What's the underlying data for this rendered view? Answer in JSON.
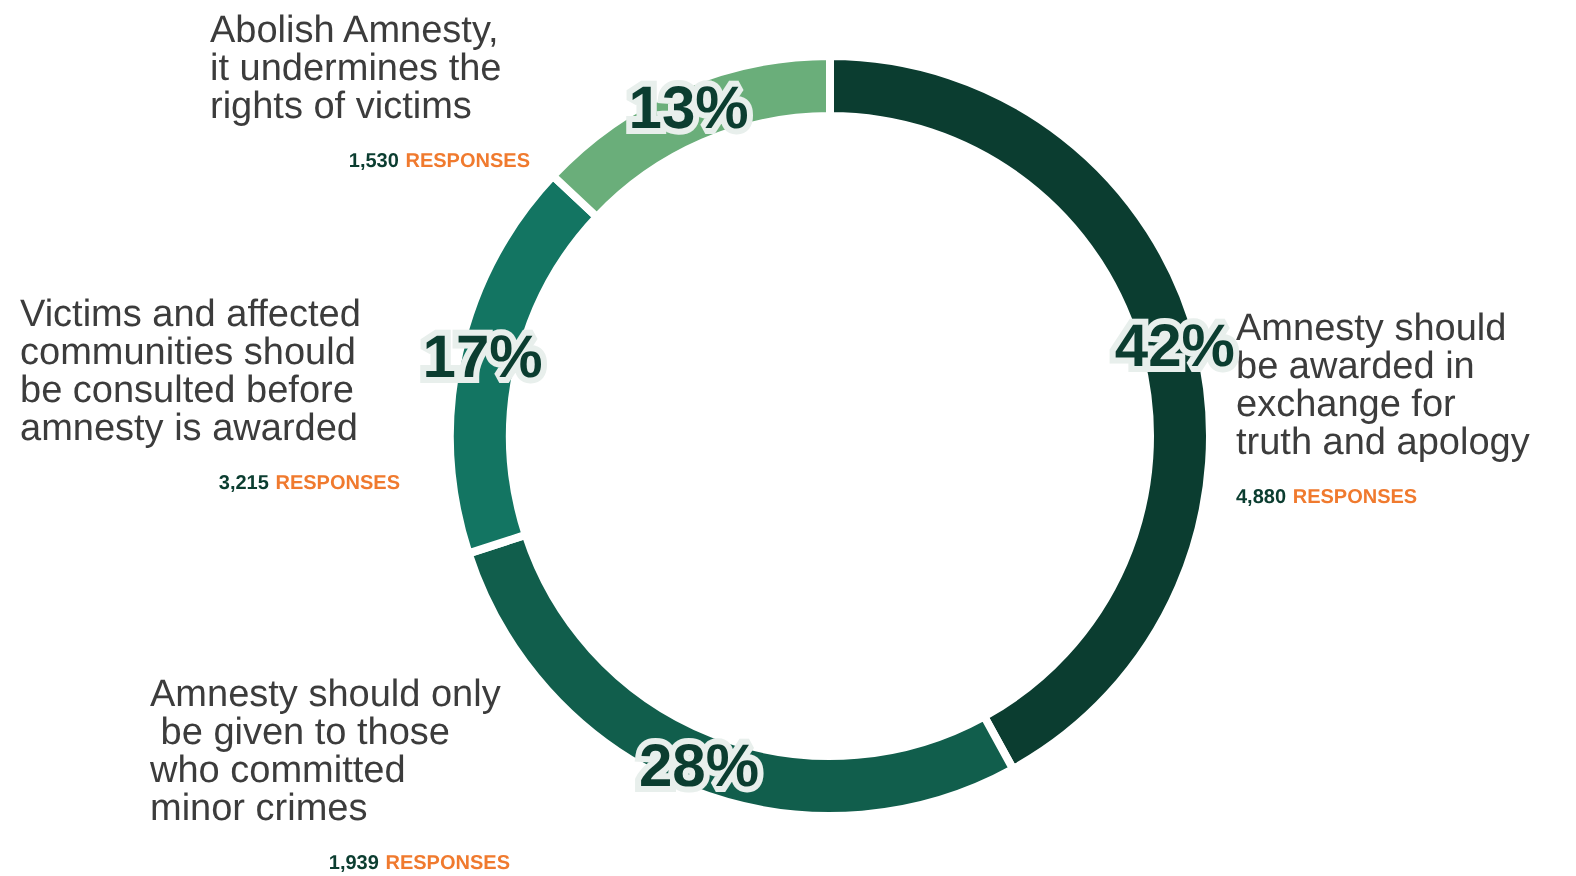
{
  "chart_data": {
    "type": "donut",
    "categories": [
      "Amnesty should be awarded in exchange for truth and apology",
      "Amnesty should only be given to those who committed minor crimes",
      "Victims and affected communities should be consulted before amnesty is awarded",
      "Abolish Amnesty, it undermines the rights of victims"
    ],
    "values": [
      42,
      28,
      17,
      13
    ],
    "value_labels": [
      "42%",
      "28%",
      "17%",
      "13%"
    ],
    "colors": [
      "#0b3d30",
      "#115e4c",
      "#137562",
      "#6aae7a"
    ],
    "annotations": [
      "4,880 RESPONSES",
      "1,939 RESPONSES",
      "3,215 RESPONSES",
      "1,530 RESPONSES"
    ],
    "legend": false
  }
}
